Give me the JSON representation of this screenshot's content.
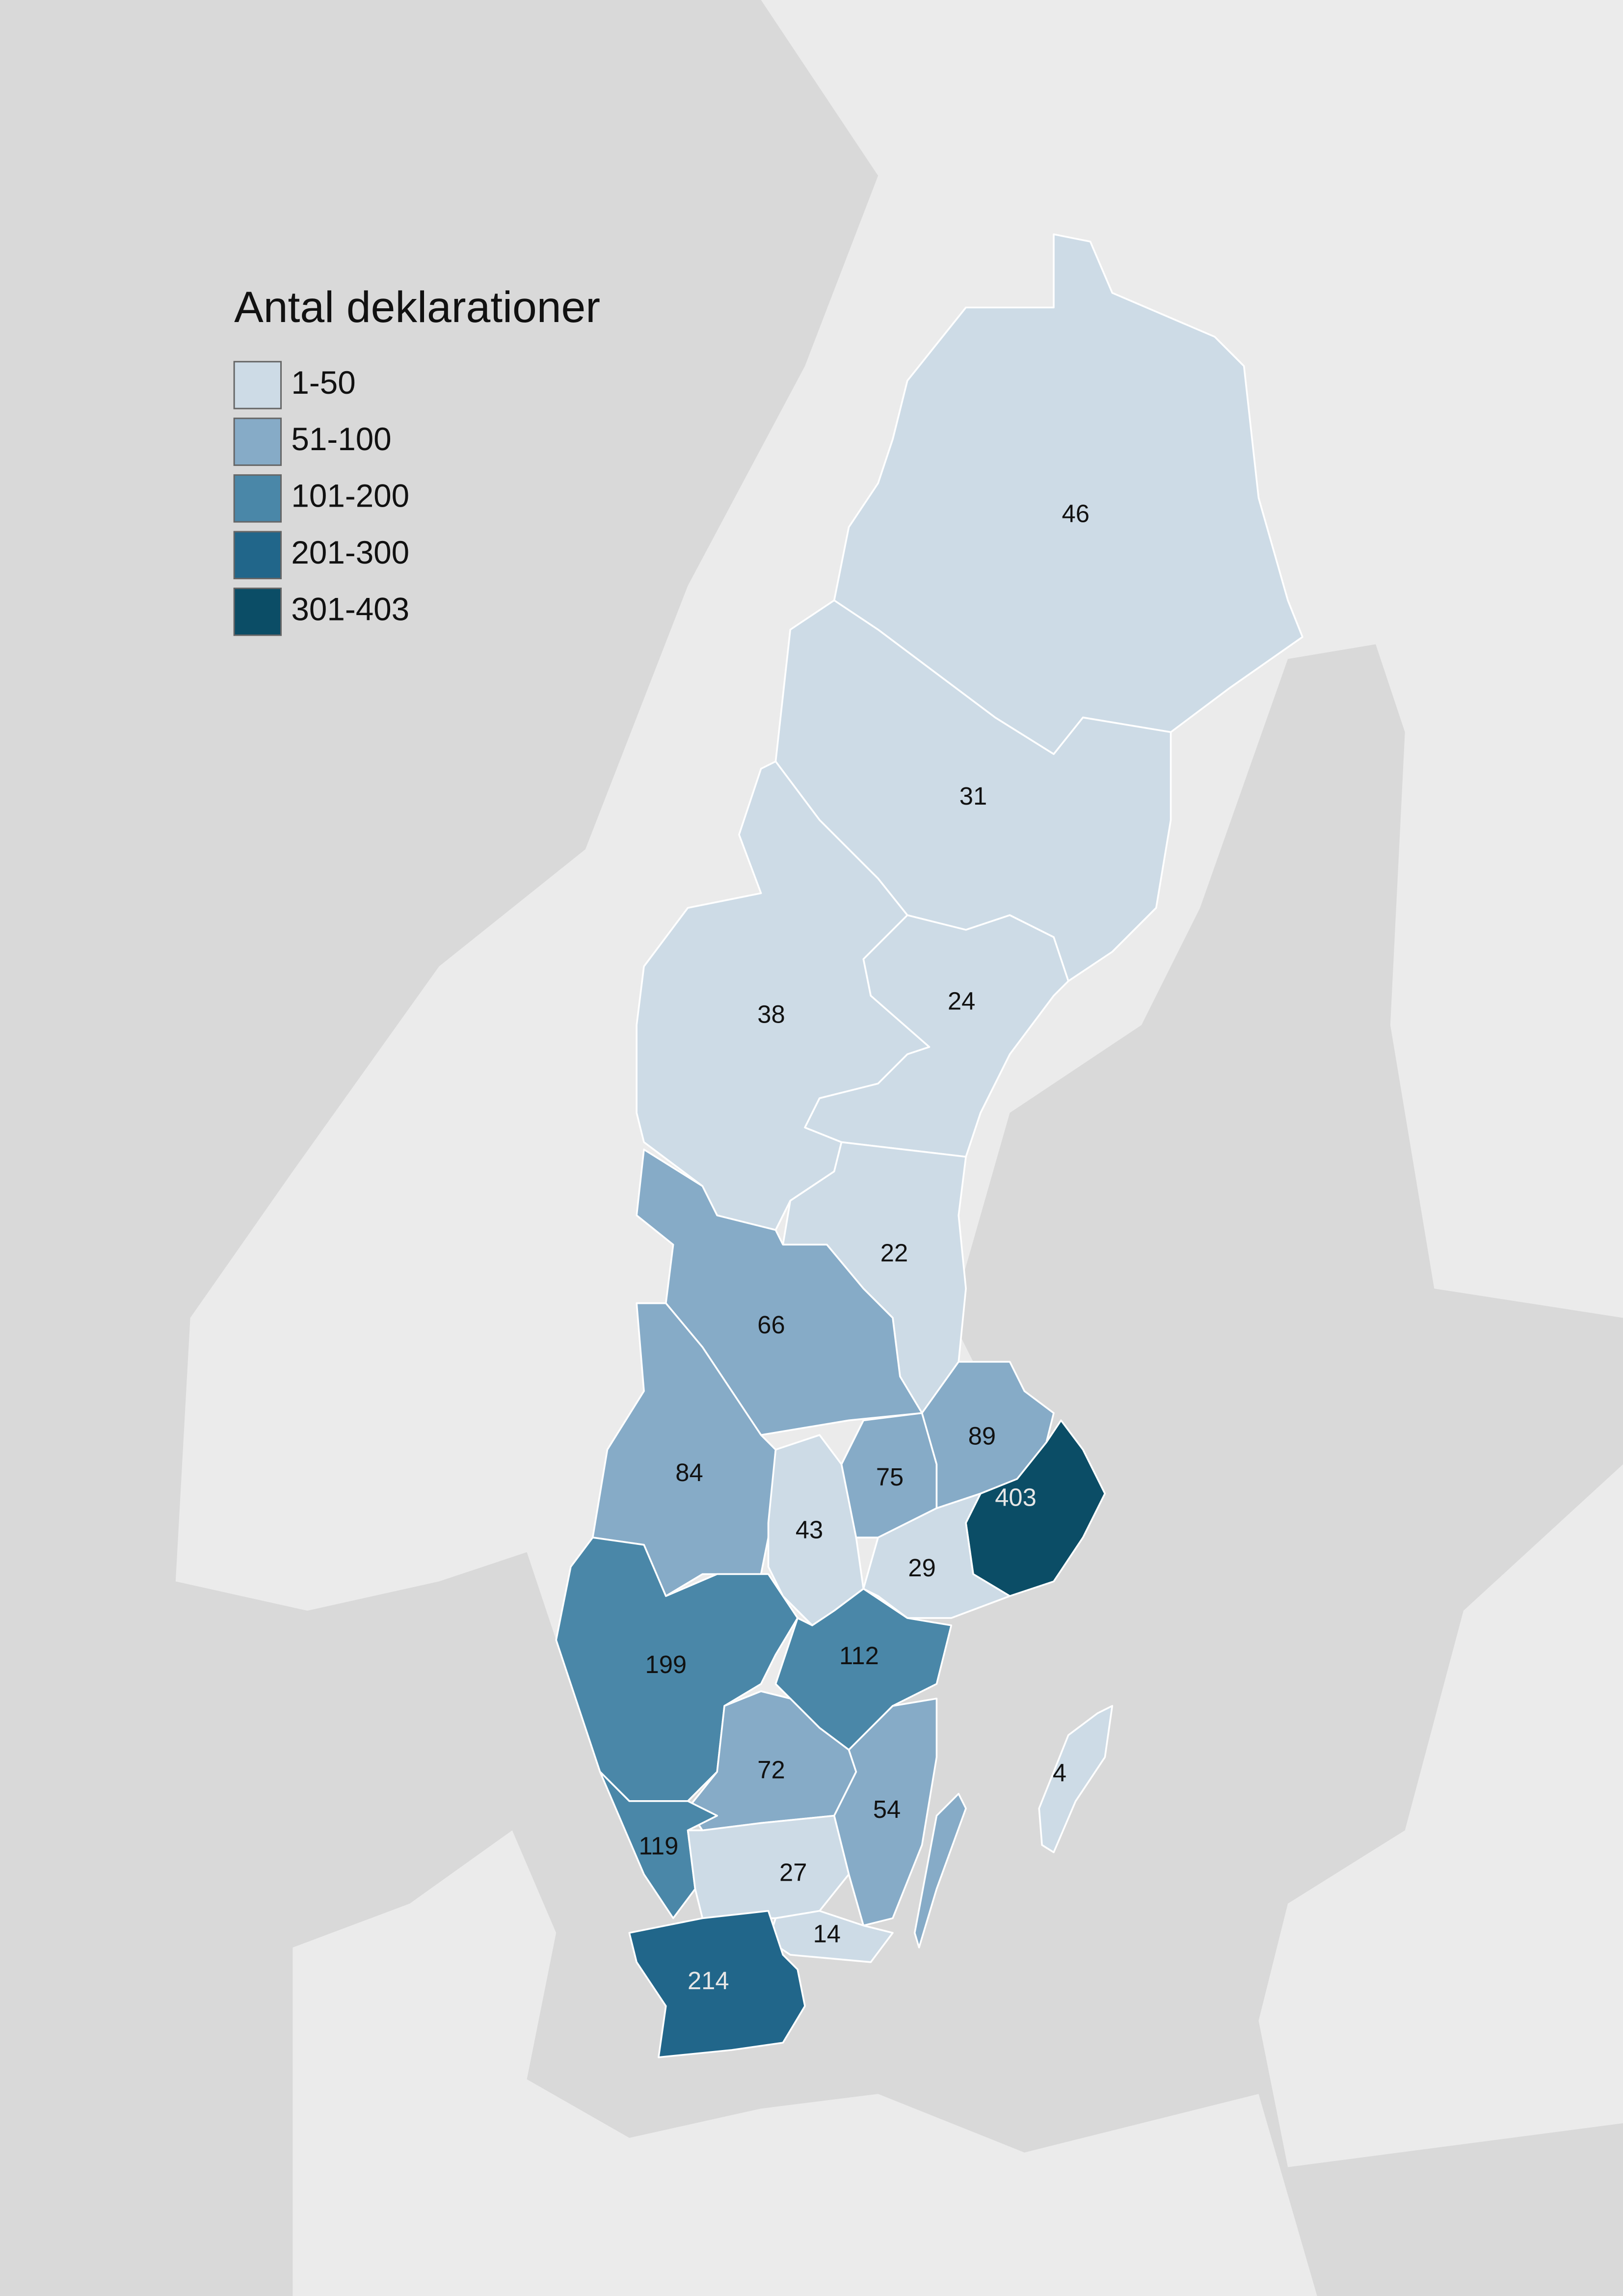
{
  "legend": {
    "title": "Antal deklarationer",
    "items": [
      {
        "label": "1-50",
        "color": "#cddbe6"
      },
      {
        "label": "51-100",
        "color": "#86abc7"
      },
      {
        "label": "101-200",
        "color": "#4a87a8"
      },
      {
        "label": "201-300",
        "color": "#21668a"
      },
      {
        "label": "301-403",
        "color": "#0b4d66"
      }
    ]
  },
  "regions": [
    {
      "value": 46,
      "color": "#cddbe6"
    },
    {
      "value": 31,
      "color": "#cddbe6"
    },
    {
      "value": 38,
      "color": "#cddbe6"
    },
    {
      "value": 24,
      "color": "#cddbe6"
    },
    {
      "value": 22,
      "color": "#cddbe6"
    },
    {
      "value": 66,
      "color": "#86abc7"
    },
    {
      "value": 84,
      "color": "#86abc7"
    },
    {
      "value": 43,
      "color": "#cddbe6"
    },
    {
      "value": 75,
      "color": "#86abc7"
    },
    {
      "value": 89,
      "color": "#86abc7"
    },
    {
      "value": 403,
      "color": "#0b4d66"
    },
    {
      "value": 29,
      "color": "#cddbe6"
    },
    {
      "value": 199,
      "color": "#4a87a8"
    },
    {
      "value": 112,
      "color": "#4a87a8"
    },
    {
      "value": 72,
      "color": "#86abc7"
    },
    {
      "value": 54,
      "color": "#86abc7"
    },
    {
      "value": 119,
      "color": "#4a87a8"
    },
    {
      "value": 27,
      "color": "#cddbe6"
    },
    {
      "value": 14,
      "color": "#cddbe6"
    },
    {
      "value": 214,
      "color": "#21668a"
    },
    {
      "value": 4,
      "color": "#cddbe6"
    }
  ]
}
